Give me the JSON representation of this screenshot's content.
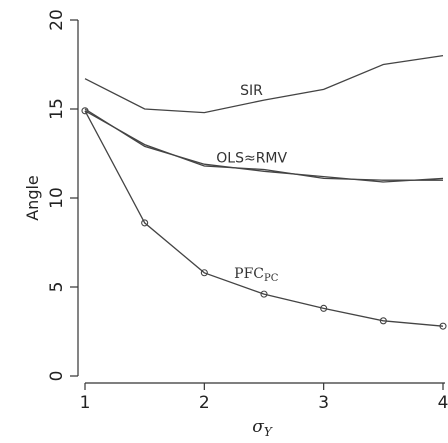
{
  "chart_data": {
    "type": "line",
    "title": "",
    "xlabel": "σ_Y",
    "ylabel": "Angle",
    "xlim": [
      1,
      4
    ],
    "ylim": [
      0,
      20
    ],
    "xticks": [
      1,
      2,
      3,
      4
    ],
    "yticks": [
      0,
      5,
      10,
      15,
      20
    ],
    "grid": false,
    "legend": "none",
    "series": [
      {
        "name": "SIR",
        "markers": false,
        "x": [
          1,
          1.5,
          2,
          2.5,
          3,
          3.5,
          4
        ],
        "y": [
          16.7,
          15.0,
          14.8,
          15.5,
          16.1,
          17.5,
          18.0
        ]
      },
      {
        "name": "OLS",
        "markers": false,
        "x": [
          1,
          1.5,
          2,
          2.5,
          3,
          3.5,
          4
        ],
        "y": [
          14.9,
          13.0,
          11.8,
          11.6,
          11.1,
          11.0,
          11.0
        ]
      },
      {
        "name": "RMV",
        "markers": false,
        "x": [
          1,
          1.5,
          2,
          2.5,
          3,
          3.5,
          4
        ],
        "y": [
          15.0,
          12.9,
          11.9,
          11.5,
          11.2,
          10.9,
          11.1
        ]
      },
      {
        "name": "PFC",
        "markers": true,
        "x": [
          1,
          1.5,
          2,
          2.5,
          3,
          3.5,
          4
        ],
        "y": [
          14.9,
          8.6,
          5.8,
          4.6,
          3.8,
          3.1,
          2.8
        ]
      }
    ],
    "annotations": [
      {
        "id": "sir",
        "text": "SIR",
        "x": 2.3,
        "y": 15.8
      },
      {
        "id": "olsrmv",
        "text": "OLS≈RMV",
        "x": 2.1,
        "y": 12.0
      },
      {
        "id": "pfc",
        "text": "PFC",
        "sub": "PC",
        "x": 2.25,
        "y": 5.5
      }
    ],
    "colors": {
      "line": "#444444",
      "axis": "#333333",
      "text": "#222222"
    }
  }
}
